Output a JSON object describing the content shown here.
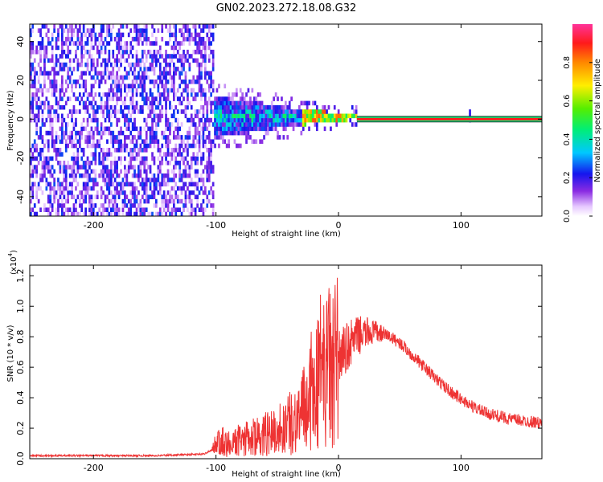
{
  "title": "GN02.2023.272.18.08.G32",
  "chart_data": [
    {
      "type": "heatmap",
      "xlabel": "Height of straight line (km)",
      "ylabel": "Frequency (Hz)",
      "xlim": [
        -252,
        166
      ],
      "ylim": [
        -50,
        49
      ],
      "xticks": [
        -200,
        -100,
        0,
        100
      ],
      "yticks": [
        -40,
        -20,
        0,
        20,
        40
      ],
      "colorbar": {
        "label": "Normalized spectral amplitude",
        "range": [
          0,
          1
        ],
        "ticks": [
          0.0,
          0.2,
          0.4,
          0.6,
          0.8
        ]
      },
      "features": [
        {
          "region": "noise",
          "x_range": [
            -252,
            -103
          ],
          "y_range": [
            -50,
            49
          ],
          "amplitude": 0.2
        },
        {
          "region": "broadband-band",
          "x_range": [
            -103,
            -30
          ],
          "y_center": 0,
          "half_width_start": 11,
          "half_width_end": 4,
          "amplitude": 0.4
        },
        {
          "region": "converging-band",
          "x_range": [
            -30,
            15
          ],
          "y_center": 0,
          "half_width_start": 4,
          "half_width_end": 1,
          "amplitude": 0.85
        },
        {
          "region": "tone",
          "x_range": [
            15,
            166
          ],
          "y": 0,
          "amplitude": 1.0
        },
        {
          "region": "spike",
          "x": 106,
          "y_range": [
            -3,
            3
          ],
          "amplitude": 0.2
        }
      ]
    },
    {
      "type": "line",
      "xlabel": "Height of straight line (km)",
      "ylabel": "SNR (10 * v/v)",
      "y_multiplier": "(x10",
      "y_multiplier_exp": "4",
      "y_multiplier_close": ")",
      "xlim": [
        -252,
        166
      ],
      "ylim": [
        0,
        1.27
      ],
      "xticks": [
        -200,
        -100,
        0,
        100
      ],
      "yticks": [
        0.0,
        0.2,
        0.4,
        0.6,
        0.8,
        1.0,
        1.2
      ],
      "series": [
        {
          "color": "#ee3333",
          "x": [
            -252,
            -200,
            -150,
            -110,
            -103,
            -100,
            -90,
            -80,
            -70,
            -60,
            -50,
            -40,
            -35,
            -30,
            -25,
            -20,
            -18,
            -15,
            -10,
            -5,
            0,
            5,
            10,
            15,
            20,
            25,
            30,
            40,
            50,
            60,
            70,
            80,
            90,
            100,
            110,
            120,
            130,
            140,
            150,
            160,
            166
          ],
          "y": [
            0.02,
            0.02,
            0.02,
            0.03,
            0.06,
            0.09,
            0.11,
            0.12,
            0.14,
            0.16,
            0.19,
            0.23,
            0.26,
            0.3,
            0.36,
            0.43,
            0.48,
            0.53,
            0.58,
            0.62,
            0.66,
            0.71,
            0.76,
            0.8,
            0.82,
            0.83,
            0.83,
            0.81,
            0.76,
            0.68,
            0.6,
            0.52,
            0.45,
            0.39,
            0.34,
            0.3,
            0.28,
            0.26,
            0.25,
            0.24,
            0.23
          ]
        }
      ]
    }
  ]
}
